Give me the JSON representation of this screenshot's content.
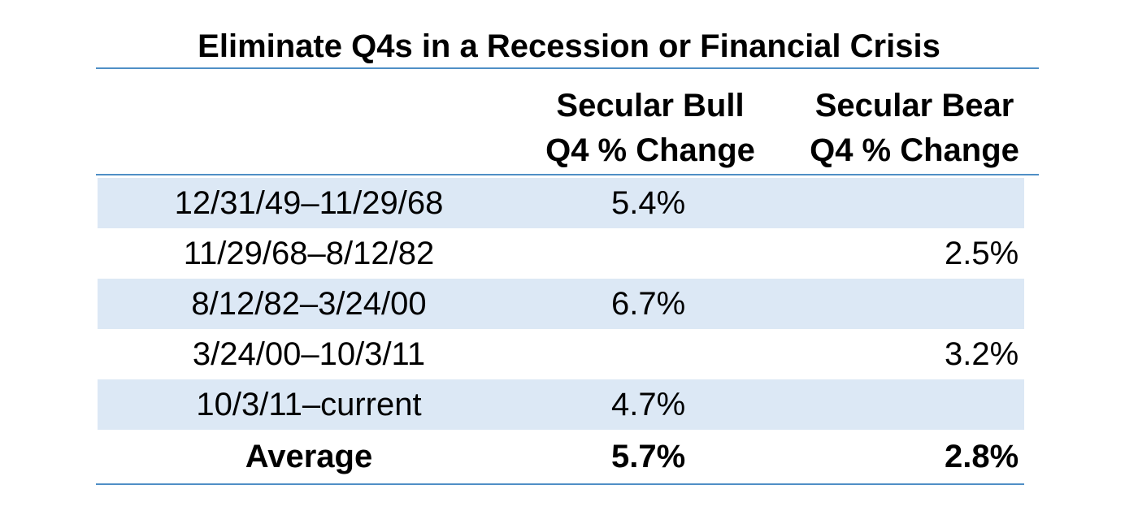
{
  "chart_data": {
    "type": "table",
    "title": "Eliminate Q4s in a Recession or Financial Crisis",
    "columns": [
      {
        "line1": "",
        "line2": ""
      },
      {
        "line1": "Secular Bull",
        "line2": "Q4 % Change"
      },
      {
        "line1": "Secular Bear",
        "line2": "Q4 % Change"
      }
    ],
    "rows": [
      {
        "period": "12/31/49–11/29/68",
        "bull": "5.4%",
        "bear": ""
      },
      {
        "period": "11/29/68–8/12/82",
        "bull": "",
        "bear": "2.5%"
      },
      {
        "period": "8/12/82–3/24/00",
        "bull": "6.7%",
        "bear": ""
      },
      {
        "period": "3/24/00–10/3/11",
        "bull": "",
        "bear": "3.2%"
      },
      {
        "period": "10/3/11–current",
        "bull": "4.7%",
        "bear": ""
      }
    ],
    "average": {
      "label": "Average",
      "bull": "5.7%",
      "bear": "2.8%"
    },
    "colors": {
      "rule": "#4f8fc6",
      "shaded_row": "#dce8f5",
      "text": "#000000"
    }
  }
}
